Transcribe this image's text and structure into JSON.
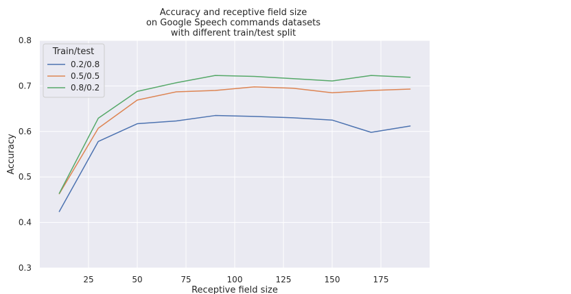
{
  "chart_data": {
    "type": "line",
    "title": [
      "Accuracy and receptive field size",
      "on Google Speech commands datasets",
      "with different train/test split"
    ],
    "xlabel": "Receptive field size",
    "ylabel": "Accuracy",
    "xlim": [
      0,
      200
    ],
    "ylim": [
      0.3,
      0.8
    ],
    "xticks": [
      25,
      50,
      75,
      100,
      125,
      150,
      175
    ],
    "yticks": [
      0.3,
      0.4,
      0.5,
      0.6,
      0.7,
      0.8
    ],
    "xtick_labels": [
      "25",
      "50",
      "75",
      "100",
      "125",
      "150",
      "175"
    ],
    "ytick_labels": [
      "0.3",
      "0.4",
      "0.5",
      "0.6",
      "0.7",
      "0.8"
    ],
    "grid": true,
    "legend": {
      "title": "Train/test",
      "placement": "top-left"
    },
    "x": [
      10,
      30,
      50,
      70,
      90,
      110,
      130,
      150,
      170,
      190
    ],
    "series": [
      {
        "name": "0.2/0.8",
        "color": "#4c72b0",
        "values": [
          0.424,
          0.578,
          0.617,
          0.623,
          0.635,
          0.633,
          0.63,
          0.625,
          0.598,
          0.612
        ]
      },
      {
        "name": "0.5/0.5",
        "color": "#dd8452",
        "values": [
          0.463,
          0.607,
          0.669,
          0.687,
          0.69,
          0.698,
          0.695,
          0.685,
          0.69,
          0.693
        ]
      },
      {
        "name": "0.8/0.2",
        "color": "#55a868",
        "values": [
          0.464,
          0.629,
          0.688,
          0.707,
          0.723,
          0.721,
          0.716,
          0.711,
          0.723,
          0.719
        ]
      }
    ]
  }
}
